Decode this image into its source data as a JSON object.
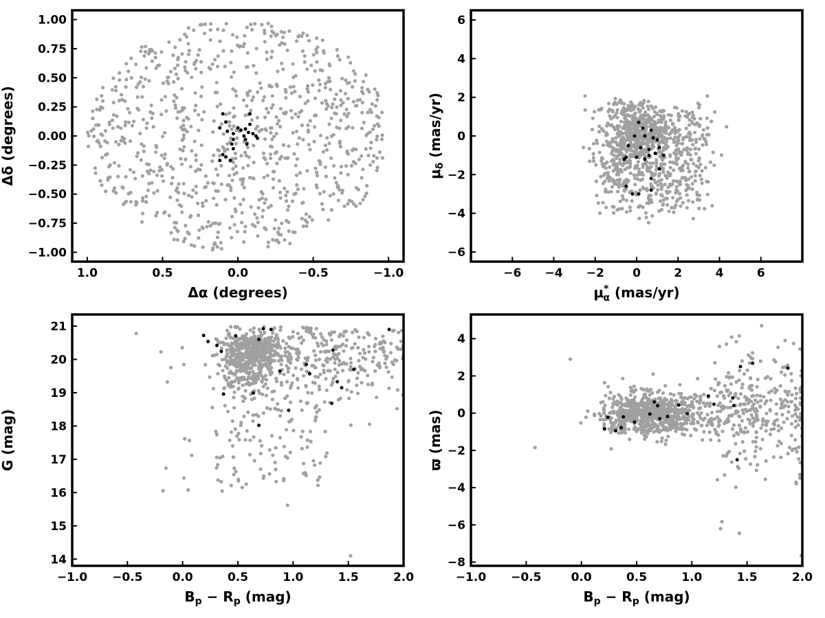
{
  "chart_data": [
    {
      "type": "scatter",
      "panel": "top-left",
      "xlabel": "Δα (degrees)",
      "ylabel": "Δδ (degrees)",
      "xlim": [
        1.1,
        -1.1
      ],
      "ylim": [
        -1.08,
        1.08
      ],
      "x_inverted": true,
      "xticks": [
        1.0,
        0.5,
        0.0,
        -0.5,
        -1.0
      ],
      "xtick_labels": [
        "1.0",
        "0.5",
        "0.0",
        "−0.5",
        "−1.0"
      ],
      "yticks": [
        1.0,
        0.75,
        0.5,
        0.25,
        0.0,
        -0.25,
        -0.5,
        -0.75,
        -1.0
      ],
      "ytick_labels": [
        "1.00",
        "0.75",
        "0.50",
        "0.25",
        "0.00",
        "−0.25",
        "−0.50",
        "−0.75",
        "−1.00"
      ],
      "grid": false,
      "series": [
        {
          "color": "#a0a0a0",
          "generated": true,
          "distribution": "uniform-disk",
          "center": [
            0,
            0
          ],
          "radius": 1.0,
          "count": 900
        },
        {
          "color": "#000000",
          "points": [
            [
              0.1,
              0.19
            ],
            [
              0.08,
              0.12
            ],
            [
              0.12,
              0.07
            ],
            [
              0.07,
              0.04
            ],
            [
              0.03,
              0.02
            ],
            [
              0.0,
              0.07
            ],
            [
              -0.02,
              0.05
            ],
            [
              -0.05,
              0.06
            ],
            [
              -0.08,
              0.19
            ],
            [
              -0.08,
              0.1
            ],
            [
              -0.07,
              0.03
            ],
            [
              -0.1,
              0.02
            ],
            [
              -0.12,
              0.0
            ],
            [
              -0.13,
              -0.02
            ],
            [
              -0.04,
              0.0
            ],
            [
              -0.05,
              -0.03
            ],
            [
              -0.06,
              -0.07
            ],
            [
              0.03,
              -0.03
            ],
            [
              0.04,
              -0.07
            ],
            [
              0.03,
              -0.11
            ],
            [
              0.1,
              -0.16
            ],
            [
              0.12,
              -0.21
            ],
            [
              0.05,
              -0.21
            ],
            [
              0.08,
              -0.18
            ]
          ]
        }
      ]
    },
    {
      "type": "scatter",
      "panel": "top-right",
      "xlabel": "μ*α (mas/yr)",
      "ylabel": "μδ (mas/yr)",
      "xlim": [
        -8,
        8
      ],
      "ylim": [
        -6.5,
        6.5
      ],
      "xticks": [
        -6,
        -4,
        -2,
        0,
        2,
        4,
        6
      ],
      "xtick_labels": [
        "−6",
        "−4",
        "−2",
        "0",
        "2",
        "4",
        "6"
      ],
      "yticks": [
        6,
        4,
        2,
        0,
        -2,
        -4,
        -6
      ],
      "ytick_labels": [
        "6",
        "4",
        "2",
        "0",
        "−2",
        "−4",
        "−6"
      ],
      "grid": false,
      "series": [
        {
          "color": "#a0a0a0",
          "generated": true,
          "distribution": "clumped-cloud",
          "center": [
            0.8,
            -1.2
          ],
          "spread": [
            2.6,
            2.4
          ],
          "extent": [
            [
              -4.8,
              5.0
            ],
            [
              -5.0,
              4.4
            ]
          ],
          "count": 1000
        },
        {
          "color": "#000000",
          "points": [
            [
              0.1,
              0.7
            ],
            [
              0.3,
              0.4
            ],
            [
              0.7,
              0.3
            ],
            [
              -0.1,
              0.0
            ],
            [
              0.4,
              0.0
            ],
            [
              0.8,
              -0.1
            ],
            [
              1.0,
              -0.2
            ],
            [
              -0.4,
              -0.5
            ],
            [
              0.2,
              -0.6
            ],
            [
              0.6,
              -0.7
            ],
            [
              0.9,
              -0.9
            ],
            [
              1.1,
              -0.6
            ],
            [
              -0.5,
              -1.1
            ],
            [
              -0.6,
              -1.2
            ],
            [
              0.0,
              -1.1
            ],
            [
              0.4,
              -1.2
            ],
            [
              0.6,
              -1.0
            ],
            [
              1.3,
              -1.0
            ],
            [
              1.1,
              -1.7
            ],
            [
              0.7,
              -2.2
            ],
            [
              0.7,
              -2.8
            ],
            [
              -0.5,
              -2.6
            ],
            [
              -0.2,
              -3.0
            ],
            [
              0.1,
              -3.0
            ]
          ]
        }
      ]
    },
    {
      "type": "scatter",
      "panel": "bottom-left",
      "xlabel": "Bp − Rp (mag)",
      "ylabel": "G (mag)",
      "xlim": [
        -1.0,
        2.0
      ],
      "ylim": [
        13.8,
        21.35
      ],
      "yticks": [
        21,
        20,
        19,
        18,
        17,
        16,
        15,
        14
      ],
      "ytick_labels": [
        "21",
        "20",
        "19",
        "18",
        "17",
        "16",
        "15",
        "14"
      ],
      "xticks": [
        -1.0,
        -0.5,
        0.0,
        0.5,
        1.0,
        1.5,
        2.0
      ],
      "xtick_labels": [
        "−1.0",
        "−0.5",
        "0.0",
        "0.5",
        "1.0",
        "1.5",
        "2.0"
      ],
      "grid": false,
      "series": [
        {
          "color": "#a0a0a0",
          "generated": true,
          "distribution": "colour-magnitude",
          "count": 1000
        },
        {
          "color": "#000000",
          "points": [
            [
              0.19,
              20.72
            ],
            [
              0.23,
              20.54
            ],
            [
              0.31,
              20.42
            ],
            [
              0.35,
              20.24
            ],
            [
              0.48,
              20.71
            ],
            [
              0.69,
              20.6
            ],
            [
              0.73,
              20.92
            ],
            [
              0.8,
              20.9
            ],
            [
              0.37,
              18.96
            ],
            [
              0.64,
              18.99
            ],
            [
              0.88,
              19.65
            ],
            [
              0.69,
              18.02
            ],
            [
              0.96,
              18.47
            ],
            [
              1.12,
              19.85
            ],
            [
              1.15,
              19.57
            ],
            [
              1.36,
              20.28
            ],
            [
              1.4,
              19.33
            ],
            [
              1.44,
              19.15
            ],
            [
              1.35,
              18.68
            ],
            [
              1.55,
              19.7
            ],
            [
              1.87,
              20.9
            ]
          ]
        }
      ]
    },
    {
      "type": "scatter",
      "panel": "bottom-right",
      "xlabel": "Bp − Rp (mag)",
      "ylabel": "ϖ (mas)",
      "xlim": [
        -1.0,
        2.0
      ],
      "ylim": [
        -8.2,
        5.3
      ],
      "yticks": [
        4,
        2,
        0,
        -2,
        -4,
        -6,
        -8
      ],
      "ytick_labels": [
        "4",
        "2",
        "0",
        "−2",
        "−4",
        "−6",
        "−8"
      ],
      "xticks": [
        -1.0,
        -0.5,
        0.0,
        0.5,
        1.0,
        1.5,
        2.0
      ],
      "xtick_labels": [
        "−1.0",
        "−0.5",
        "0.0",
        "0.5",
        "1.0",
        "1.5",
        "2.0"
      ],
      "grid": false,
      "series": [
        {
          "color": "#a0a0a0",
          "generated": true,
          "distribution": "parallax-band",
          "count": 1100
        },
        {
          "color": "#000000",
          "points": [
            [
              0.21,
              -0.85
            ],
            [
              0.24,
              -0.22
            ],
            [
              0.31,
              -0.95
            ],
            [
              0.36,
              -0.78
            ],
            [
              0.38,
              -0.2
            ],
            [
              0.48,
              -0.48
            ],
            [
              0.62,
              -0.05
            ],
            [
              0.66,
              0.6
            ],
            [
              0.69,
              0.4
            ],
            [
              0.71,
              -0.3
            ],
            [
              0.78,
              -0.18
            ],
            [
              0.88,
              0.43
            ],
            [
              0.96,
              -0.02
            ],
            [
              1.15,
              0.92
            ],
            [
              1.2,
              0.48
            ],
            [
              1.37,
              0.82
            ],
            [
              1.38,
              0.41
            ],
            [
              1.44,
              2.5
            ],
            [
              1.55,
              2.68
            ],
            [
              1.41,
              -2.5
            ],
            [
              1.87,
              2.42
            ]
          ]
        }
      ]
    }
  ]
}
